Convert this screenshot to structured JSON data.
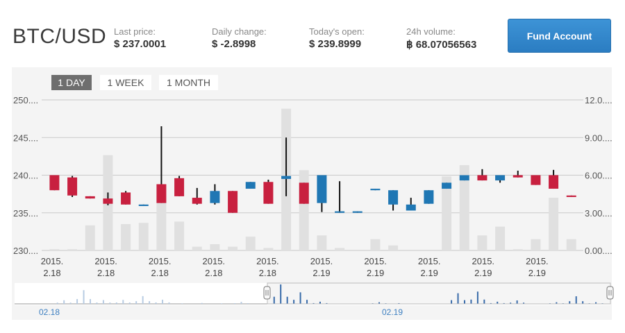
{
  "header": {
    "pair": "BTC/USD",
    "last_price_label": "Last price:",
    "last_price": "$ 237.0001",
    "daily_change_label": "Daily change:",
    "daily_change": "$ -2.8998",
    "todays_open_label": "Today's open:",
    "todays_open": "$ 239.8999",
    "volume_label": "24h volume:",
    "volume": "฿ 68.07056563",
    "fund_button": "Fund Account"
  },
  "tabs": [
    "1 DAY",
    "1 WEEK",
    "1 MONTH"
  ],
  "active_tab": "1 DAY",
  "navigator": {
    "labels": [
      "02.18",
      "02.19"
    ]
  },
  "colors": {
    "up": "#1f77b4",
    "down": "#c8203f",
    "volume": "#e0e0e0",
    "accent": "#2b7dc2"
  },
  "chart_data": {
    "type": "candlestick",
    "y_left_ticks": [
      "250....",
      "245....",
      "240....",
      "235....",
      "230...."
    ],
    "y_right_ticks": [
      "12.0....",
      "9.00....",
      "6.00....",
      "3.00....",
      "0.00...."
    ],
    "ylim_price": [
      230,
      250
    ],
    "ylim_volume": [
      0,
      12
    ],
    "x_tick_labels": [
      [
        "2015.",
        "2.18"
      ],
      [
        "2015.",
        "2.18"
      ],
      [
        "2015.",
        "2.18"
      ],
      [
        "2015.",
        "2.18"
      ],
      [
        "2015.",
        "2.18"
      ],
      [
        "2015.",
        "2.19"
      ],
      [
        "2015.",
        "2.19"
      ],
      [
        "2015.",
        "2.19"
      ],
      [
        "2015.",
        "2.19"
      ],
      [
        "2015.",
        "2.19"
      ]
    ],
    "grid": true,
    "candles": [
      {
        "open": 240.0,
        "close": 238.0,
        "high": 240.0,
        "low": 238.0,
        "volume": 0.1
      },
      {
        "open": 239.7,
        "close": 237.3,
        "high": 239.9,
        "low": 237.1,
        "volume": 0.1
      },
      {
        "open": 237.2,
        "close": 236.9,
        "high": 237.2,
        "low": 236.9,
        "volume": 2.0
      },
      {
        "open": 236.9,
        "close": 236.2,
        "high": 237.7,
        "low": 236.0,
        "volume": 7.6
      },
      {
        "open": 237.7,
        "close": 236.1,
        "high": 237.9,
        "low": 236.1,
        "volume": 2.1
      },
      {
        "open": 235.9,
        "close": 236.1,
        "high": 236.1,
        "low": 235.9,
        "volume": 2.2
      },
      {
        "open": 238.8,
        "close": 236.3,
        "high": 246.5,
        "low": 236.3,
        "volume": 4.3
      },
      {
        "open": 239.6,
        "close": 237.2,
        "high": 239.9,
        "low": 237.2,
        "volume": 2.3
      },
      {
        "open": 237.0,
        "close": 236.2,
        "high": 238.3,
        "low": 236.1,
        "volume": 0.3
      },
      {
        "open": 236.3,
        "close": 237.9,
        "high": 238.8,
        "low": 236.1,
        "volume": 0.5
      },
      {
        "open": 237.9,
        "close": 235.0,
        "high": 237.9,
        "low": 235.0,
        "volume": 0.3
      },
      {
        "open": 238.2,
        "close": 239.1,
        "high": 239.1,
        "low": 238.2,
        "volume": 1.1
      },
      {
        "open": 239.1,
        "close": 236.2,
        "high": 239.4,
        "low": 236.2,
        "volume": 0.2
      },
      {
        "open": 239.5,
        "close": 239.9,
        "high": 245.0,
        "low": 237.2,
        "volume": 11.3
      },
      {
        "open": 239.0,
        "close": 236.2,
        "high": 239.0,
        "low": 236.2,
        "volume": 6.4
      },
      {
        "open": 236.3,
        "close": 240.0,
        "high": 240.0,
        "low": 235.1,
        "volume": 1.2
      },
      {
        "open": 235.0,
        "close": 235.2,
        "high": 239.2,
        "low": 235.0,
        "volume": 0.2
      },
      {
        "open": 235.0,
        "close": 235.2,
        "high": 235.2,
        "low": 235.0,
        "volume": 0.0
      },
      {
        "open": 238.0,
        "close": 238.2,
        "high": 238.2,
        "low": 238.0,
        "volume": 0.9
      },
      {
        "open": 236.1,
        "close": 238.0,
        "high": 238.0,
        "low": 235.3,
        "volume": 0.4
      },
      {
        "open": 235.3,
        "close": 236.1,
        "high": 237.0,
        "low": 235.3,
        "volume": 0.0
      },
      {
        "open": 236.2,
        "close": 238.0,
        "high": 238.0,
        "low": 236.2,
        "volume": 0.0
      },
      {
        "open": 238.2,
        "close": 239.0,
        "high": 239.0,
        "low": 238.2,
        "volume": 5.9
      },
      {
        "open": 239.3,
        "close": 240.0,
        "high": 240.0,
        "low": 239.3,
        "volume": 6.8
      },
      {
        "open": 240.0,
        "close": 239.3,
        "high": 240.8,
        "low": 239.3,
        "volume": 1.2
      },
      {
        "open": 239.3,
        "close": 240.0,
        "high": 240.0,
        "low": 239.0,
        "volume": 1.9
      },
      {
        "open": 240.0,
        "close": 239.7,
        "high": 240.6,
        "low": 239.7,
        "volume": 0.1
      },
      {
        "open": 240.0,
        "close": 238.7,
        "high": 240.0,
        "low": 238.7,
        "volume": 0.9
      },
      {
        "open": 240.0,
        "close": 238.2,
        "high": 240.7,
        "low": 238.2,
        "volume": 4.2
      },
      {
        "open": 237.3,
        "close": 237.1,
        "high": 237.3,
        "low": 237.1,
        "volume": 0.9
      }
    ]
  }
}
